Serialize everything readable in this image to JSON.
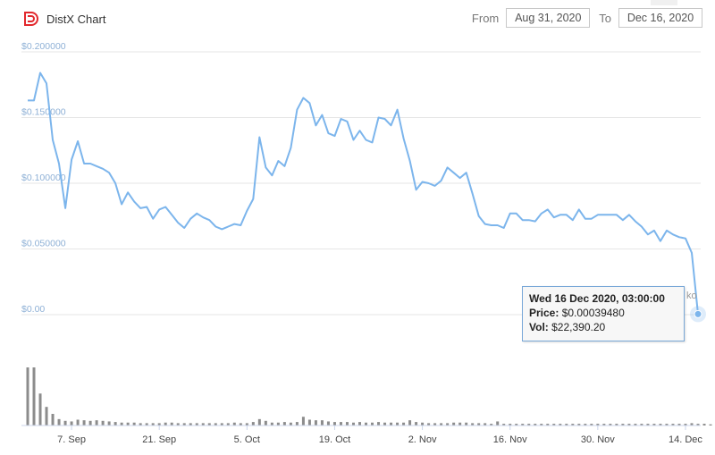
{
  "header": {
    "title": "DistX Chart",
    "from_label": "From",
    "from_value": "Aug 31, 2020",
    "to_label": "To",
    "to_value": "Dec 16, 2020"
  },
  "tooltip": {
    "date": "Wed 16 Dec 2020, 03:00:00",
    "price_label": "Price:",
    "price_value": "$0.00039480",
    "vol_label": "Vol:",
    "vol_value": "$22,390.20"
  },
  "cut_label": "ko",
  "colors": {
    "line": "#7cb5ec",
    "volume": "#8c8c8c",
    "grid": "#e6e6e6",
    "brand": "#e2282d"
  },
  "chart_data": {
    "type": "line",
    "title": "DistX Chart",
    "y_ticks": [
      "$0.00",
      "$0.050000",
      "$0.100000",
      "$0.150000",
      "$0.200000"
    ],
    "ylim": [
      0,
      0.2
    ],
    "x_ticks": [
      "7. Sep",
      "21. Sep",
      "5. Oct",
      "19. Oct",
      "2. Nov",
      "16. Nov",
      "30. Nov",
      "14. Dec"
    ],
    "x_tick_dates": [
      "2020-09-07",
      "2020-09-21",
      "2020-10-05",
      "2020-10-19",
      "2020-11-02",
      "2020-11-16",
      "2020-11-30",
      "2020-12-14"
    ],
    "xlim": [
      "2020-08-31",
      "2020-12-16"
    ],
    "series": [
      {
        "values": [
          [
            "2020-08-31",
            0.163
          ],
          [
            "2020-09-01",
            0.163
          ],
          [
            "2020-09-02",
            0.184
          ],
          [
            "2020-09-03",
            0.176
          ],
          [
            "2020-09-04",
            0.133
          ],
          [
            "2020-09-05",
            0.115
          ],
          [
            "2020-09-06",
            0.081
          ],
          [
            "2020-09-07",
            0.118
          ],
          [
            "2020-09-08",
            0.132
          ],
          [
            "2020-09-09",
            0.115
          ],
          [
            "2020-09-10",
            0.115
          ],
          [
            "2020-09-11",
            0.113
          ],
          [
            "2020-09-12",
            0.111
          ],
          [
            "2020-09-13",
            0.108
          ],
          [
            "2020-09-14",
            0.1
          ],
          [
            "2020-09-15",
            0.084
          ],
          [
            "2020-09-16",
            0.093
          ],
          [
            "2020-09-17",
            0.086
          ],
          [
            "2020-09-18",
            0.081
          ],
          [
            "2020-09-19",
            0.082
          ],
          [
            "2020-09-20",
            0.073
          ],
          [
            "2020-09-21",
            0.08
          ],
          [
            "2020-09-22",
            0.082
          ],
          [
            "2020-09-23",
            0.076
          ],
          [
            "2020-09-24",
            0.07
          ],
          [
            "2020-09-25",
            0.066
          ],
          [
            "2020-09-26",
            0.073
          ],
          [
            "2020-09-27",
            0.077
          ],
          [
            "2020-09-28",
            0.074
          ],
          [
            "2020-09-29",
            0.072
          ],
          [
            "2020-09-30",
            0.067
          ],
          [
            "2020-10-01",
            0.065
          ],
          [
            "2020-10-02",
            0.067
          ],
          [
            "2020-10-03",
            0.069
          ],
          [
            "2020-10-04",
            0.068
          ],
          [
            "2020-10-05",
            0.079
          ],
          [
            "2020-10-06",
            0.088
          ],
          [
            "2020-10-07",
            0.135
          ],
          [
            "2020-10-08",
            0.112
          ],
          [
            "2020-10-09",
            0.106
          ],
          [
            "2020-10-10",
            0.117
          ],
          [
            "2020-10-11",
            0.113
          ],
          [
            "2020-10-12",
            0.127
          ],
          [
            "2020-10-13",
            0.156
          ],
          [
            "2020-10-14",
            0.165
          ],
          [
            "2020-10-15",
            0.161
          ],
          [
            "2020-10-16",
            0.144
          ],
          [
            "2020-10-17",
            0.152
          ],
          [
            "2020-10-18",
            0.138
          ],
          [
            "2020-10-19",
            0.136
          ],
          [
            "2020-10-20",
            0.149
          ],
          [
            "2020-10-21",
            0.147
          ],
          [
            "2020-10-22",
            0.133
          ],
          [
            "2020-10-23",
            0.14
          ],
          [
            "2020-10-24",
            0.133
          ],
          [
            "2020-10-25",
            0.131
          ],
          [
            "2020-10-26",
            0.15
          ],
          [
            "2020-10-27",
            0.149
          ],
          [
            "2020-10-28",
            0.144
          ],
          [
            "2020-10-29",
            0.156
          ],
          [
            "2020-10-30",
            0.134
          ],
          [
            "2020-10-31",
            0.117
          ],
          [
            "2020-11-01",
            0.095
          ],
          [
            "2020-11-02",
            0.101
          ],
          [
            "2020-11-03",
            0.1
          ],
          [
            "2020-11-04",
            0.098
          ],
          [
            "2020-11-05",
            0.102
          ],
          [
            "2020-11-06",
            0.112
          ],
          [
            "2020-11-07",
            0.108
          ],
          [
            "2020-11-08",
            0.104
          ],
          [
            "2020-11-09",
            0.108
          ],
          [
            "2020-11-10",
            0.092
          ],
          [
            "2020-11-11",
            0.075
          ],
          [
            "2020-11-12",
            0.069
          ],
          [
            "2020-11-13",
            0.068
          ],
          [
            "2020-11-14",
            0.068
          ],
          [
            "2020-11-15",
            0.066
          ],
          [
            "2020-11-16",
            0.077
          ],
          [
            "2020-11-17",
            0.077
          ],
          [
            "2020-11-18",
            0.072
          ],
          [
            "2020-11-19",
            0.072
          ],
          [
            "2020-11-20",
            0.071
          ],
          [
            "2020-11-21",
            0.077
          ],
          [
            "2020-11-22",
            0.08
          ],
          [
            "2020-11-23",
            0.074
          ],
          [
            "2020-11-24",
            0.076
          ],
          [
            "2020-11-25",
            0.076
          ],
          [
            "2020-11-26",
            0.072
          ],
          [
            "2020-11-27",
            0.08
          ],
          [
            "2020-11-28",
            0.073
          ],
          [
            "2020-11-29",
            0.073
          ],
          [
            "2020-11-30",
            0.076
          ],
          [
            "2020-12-01",
            0.076
          ],
          [
            "2020-12-02",
            0.076
          ],
          [
            "2020-12-03",
            0.076
          ],
          [
            "2020-12-04",
            0.072
          ],
          [
            "2020-12-05",
            0.076
          ],
          [
            "2020-12-06",
            0.071
          ],
          [
            "2020-12-07",
            0.067
          ],
          [
            "2020-12-08",
            0.061
          ],
          [
            "2020-12-09",
            0.064
          ],
          [
            "2020-12-10",
            0.056
          ],
          [
            "2020-12-11",
            0.064
          ],
          [
            "2020-12-12",
            0.061
          ],
          [
            "2020-12-13",
            0.059
          ],
          [
            "2020-12-14",
            0.058
          ],
          [
            "2020-12-15",
            0.047
          ],
          [
            "2020-12-16",
            0.0004
          ]
        ]
      }
    ],
    "volume_relative": [
      1.0,
      1.0,
      0.55,
      0.32,
      0.2,
      0.11,
      0.08,
      0.07,
      0.1,
      0.09,
      0.08,
      0.09,
      0.08,
      0.07,
      0.06,
      0.05,
      0.05,
      0.05,
      0.04,
      0.04,
      0.04,
      0.04,
      0.05,
      0.05,
      0.04,
      0.04,
      0.04,
      0.04,
      0.04,
      0.04,
      0.04,
      0.04,
      0.04,
      0.05,
      0.04,
      0.04,
      0.06,
      0.11,
      0.08,
      0.05,
      0.05,
      0.06,
      0.05,
      0.06,
      0.15,
      0.1,
      0.09,
      0.09,
      0.07,
      0.06,
      0.06,
      0.06,
      0.05,
      0.06,
      0.05,
      0.05,
      0.06,
      0.05,
      0.05,
      0.05,
      0.05,
      0.09,
      0.06,
      0.05,
      0.04,
      0.04,
      0.04,
      0.04,
      0.05,
      0.05,
      0.05,
      0.04,
      0.04,
      0.04,
      0.03,
      0.07,
      0.03,
      0.03,
      0.03,
      0.03,
      0.03,
      0.03,
      0.03,
      0.03,
      0.03,
      0.03,
      0.03,
      0.03,
      0.03,
      0.03,
      0.03,
      0.03,
      0.03,
      0.03,
      0.03,
      0.03,
      0.03,
      0.03,
      0.03,
      0.03,
      0.03,
      0.03,
      0.03,
      0.03,
      0.03,
      0.03,
      0.04,
      0.03,
      0.03,
      0.02
    ],
    "grid": true,
    "legend": "none"
  }
}
